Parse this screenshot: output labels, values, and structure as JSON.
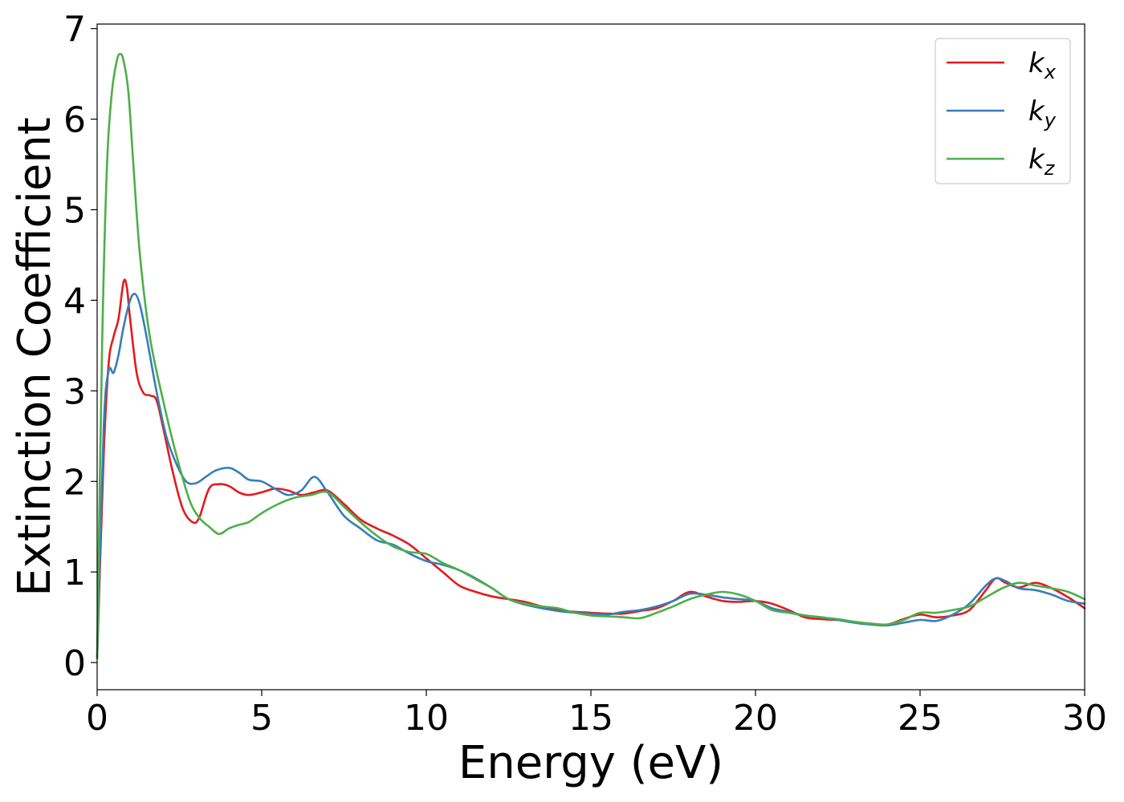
{
  "chart_data": {
    "type": "line",
    "title": "",
    "xlabel": "Energy (eV)",
    "ylabel": "Extinction Coefficient",
    "xlim": [
      0,
      30
    ],
    "ylim": [
      -0.3,
      7.05
    ],
    "xticks": [
      0,
      5,
      10,
      15,
      20,
      25,
      30
    ],
    "yticks": [
      0,
      1,
      2,
      3,
      4,
      5,
      6,
      7
    ],
    "grid": false,
    "legend_position": "top-right",
    "series": [
      {
        "name": "k",
        "subscript": "x",
        "color": "#e41a1c",
        "x": [
          0,
          0.2,
          0.35,
          0.5,
          0.65,
          0.8,
          0.9,
          1.0,
          1.2,
          1.4,
          1.6,
          1.8,
          2.0,
          2.3,
          2.6,
          2.9,
          3.1,
          3.4,
          3.7,
          4.0,
          4.3,
          4.6,
          5.0,
          5.4,
          5.8,
          6.2,
          6.6,
          7.0,
          7.5,
          8.0,
          8.5,
          9.0,
          9.5,
          10.0,
          10.5,
          11.0,
          11.5,
          12.0,
          12.5,
          13.0,
          13.5,
          14.0,
          14.5,
          15.0,
          15.5,
          16.0,
          16.5,
          17.0,
          17.5,
          18.0,
          18.5,
          19.0,
          19.5,
          20.0,
          20.5,
          21.0,
          21.5,
          22.0,
          22.5,
          23.0,
          23.5,
          24.0,
          24.5,
          25.0,
          25.5,
          26.0,
          26.5,
          27.0,
          27.3,
          27.6,
          28.0,
          28.5,
          29.0,
          29.5,
          30.0
        ],
        "y": [
          0.05,
          2.3,
          3.3,
          3.6,
          3.8,
          4.2,
          4.15,
          3.8,
          3.2,
          2.98,
          2.95,
          2.9,
          2.6,
          2.1,
          1.7,
          1.55,
          1.6,
          1.92,
          1.97,
          1.95,
          1.88,
          1.85,
          1.88,
          1.92,
          1.9,
          1.85,
          1.88,
          1.9,
          1.75,
          1.58,
          1.48,
          1.4,
          1.3,
          1.15,
          1.0,
          0.85,
          0.78,
          0.73,
          0.7,
          0.67,
          0.62,
          0.58,
          0.56,
          0.55,
          0.54,
          0.54,
          0.57,
          0.6,
          0.68,
          0.78,
          0.73,
          0.68,
          0.67,
          0.68,
          0.65,
          0.58,
          0.5,
          0.48,
          0.47,
          0.45,
          0.43,
          0.42,
          0.48,
          0.53,
          0.5,
          0.52,
          0.58,
          0.8,
          0.93,
          0.88,
          0.83,
          0.88,
          0.82,
          0.72,
          0.6
        ]
      },
      {
        "name": "k",
        "subscript": "y",
        "color": "#377eb8",
        "x": [
          0,
          0.2,
          0.35,
          0.5,
          0.65,
          0.8,
          1.0,
          1.15,
          1.3,
          1.5,
          1.8,
          2.1,
          2.4,
          2.7,
          3.0,
          3.3,
          3.6,
          4.0,
          4.3,
          4.6,
          5.0,
          5.4,
          5.8,
          6.2,
          6.6,
          7.0,
          7.5,
          8.0,
          8.5,
          9.0,
          9.5,
          10.0,
          10.5,
          11.0,
          11.5,
          12.0,
          12.5,
          13.0,
          13.5,
          14.0,
          14.5,
          15.0,
          15.5,
          16.0,
          16.5,
          17.0,
          17.5,
          18.0,
          18.5,
          19.0,
          19.5,
          20.0,
          20.5,
          21.0,
          21.5,
          22.0,
          22.5,
          23.0,
          23.5,
          24.0,
          24.5,
          25.0,
          25.5,
          26.0,
          26.5,
          27.0,
          27.3,
          27.6,
          28.0,
          28.5,
          29.0,
          29.5,
          30.0
        ],
        "y": [
          0.05,
          2.6,
          3.22,
          3.2,
          3.4,
          3.7,
          4.0,
          4.07,
          3.95,
          3.6,
          3.0,
          2.5,
          2.2,
          2.0,
          1.98,
          2.05,
          2.12,
          2.15,
          2.1,
          2.02,
          2.0,
          1.92,
          1.85,
          1.9,
          2.05,
          1.88,
          1.62,
          1.48,
          1.35,
          1.3,
          1.2,
          1.12,
          1.08,
          1.02,
          0.93,
          0.82,
          0.7,
          0.64,
          0.6,
          0.57,
          0.55,
          0.54,
          0.53,
          0.56,
          0.58,
          0.62,
          0.68,
          0.76,
          0.75,
          0.72,
          0.7,
          0.68,
          0.6,
          0.56,
          0.52,
          0.5,
          0.47,
          0.44,
          0.42,
          0.41,
          0.44,
          0.47,
          0.46,
          0.53,
          0.65,
          0.85,
          0.93,
          0.9,
          0.82,
          0.8,
          0.75,
          0.68,
          0.65
        ]
      },
      {
        "name": "k",
        "subscript": "z",
        "color": "#4daf4a",
        "x": [
          0,
          0.15,
          0.3,
          0.45,
          0.6,
          0.7,
          0.8,
          0.95,
          1.1,
          1.3,
          1.6,
          2.0,
          2.4,
          2.8,
          3.1,
          3.4,
          3.7,
          4.0,
          4.3,
          4.6,
          5.0,
          5.5,
          6.0,
          6.5,
          7.0,
          7.5,
          8.0,
          8.5,
          9.0,
          9.5,
          10.0,
          10.5,
          11.0,
          11.5,
          12.0,
          12.5,
          13.0,
          13.5,
          14.0,
          14.5,
          15.0,
          15.5,
          16.0,
          16.5,
          17.0,
          17.5,
          18.0,
          18.5,
          19.0,
          19.5,
          20.0,
          20.5,
          21.0,
          21.5,
          22.0,
          22.5,
          23.0,
          23.5,
          24.0,
          24.5,
          25.0,
          25.5,
          26.0,
          26.5,
          27.0,
          27.5,
          28.0,
          28.5,
          29.0,
          29.5,
          30.0
        ],
        "y": [
          0.05,
          3.5,
          5.5,
          6.3,
          6.65,
          6.72,
          6.65,
          6.3,
          5.5,
          4.5,
          3.6,
          2.9,
          2.3,
          1.8,
          1.6,
          1.5,
          1.42,
          1.48,
          1.52,
          1.55,
          1.65,
          1.75,
          1.82,
          1.85,
          1.88,
          1.72,
          1.55,
          1.4,
          1.28,
          1.22,
          1.2,
          1.1,
          1.02,
          0.92,
          0.82,
          0.7,
          0.65,
          0.62,
          0.6,
          0.55,
          0.52,
          0.51,
          0.5,
          0.49,
          0.55,
          0.62,
          0.7,
          0.75,
          0.78,
          0.75,
          0.68,
          0.58,
          0.55,
          0.52,
          0.5,
          0.48,
          0.45,
          0.43,
          0.42,
          0.47,
          0.55,
          0.55,
          0.58,
          0.62,
          0.72,
          0.82,
          0.88,
          0.85,
          0.82,
          0.78,
          0.7
        ]
      }
    ]
  }
}
